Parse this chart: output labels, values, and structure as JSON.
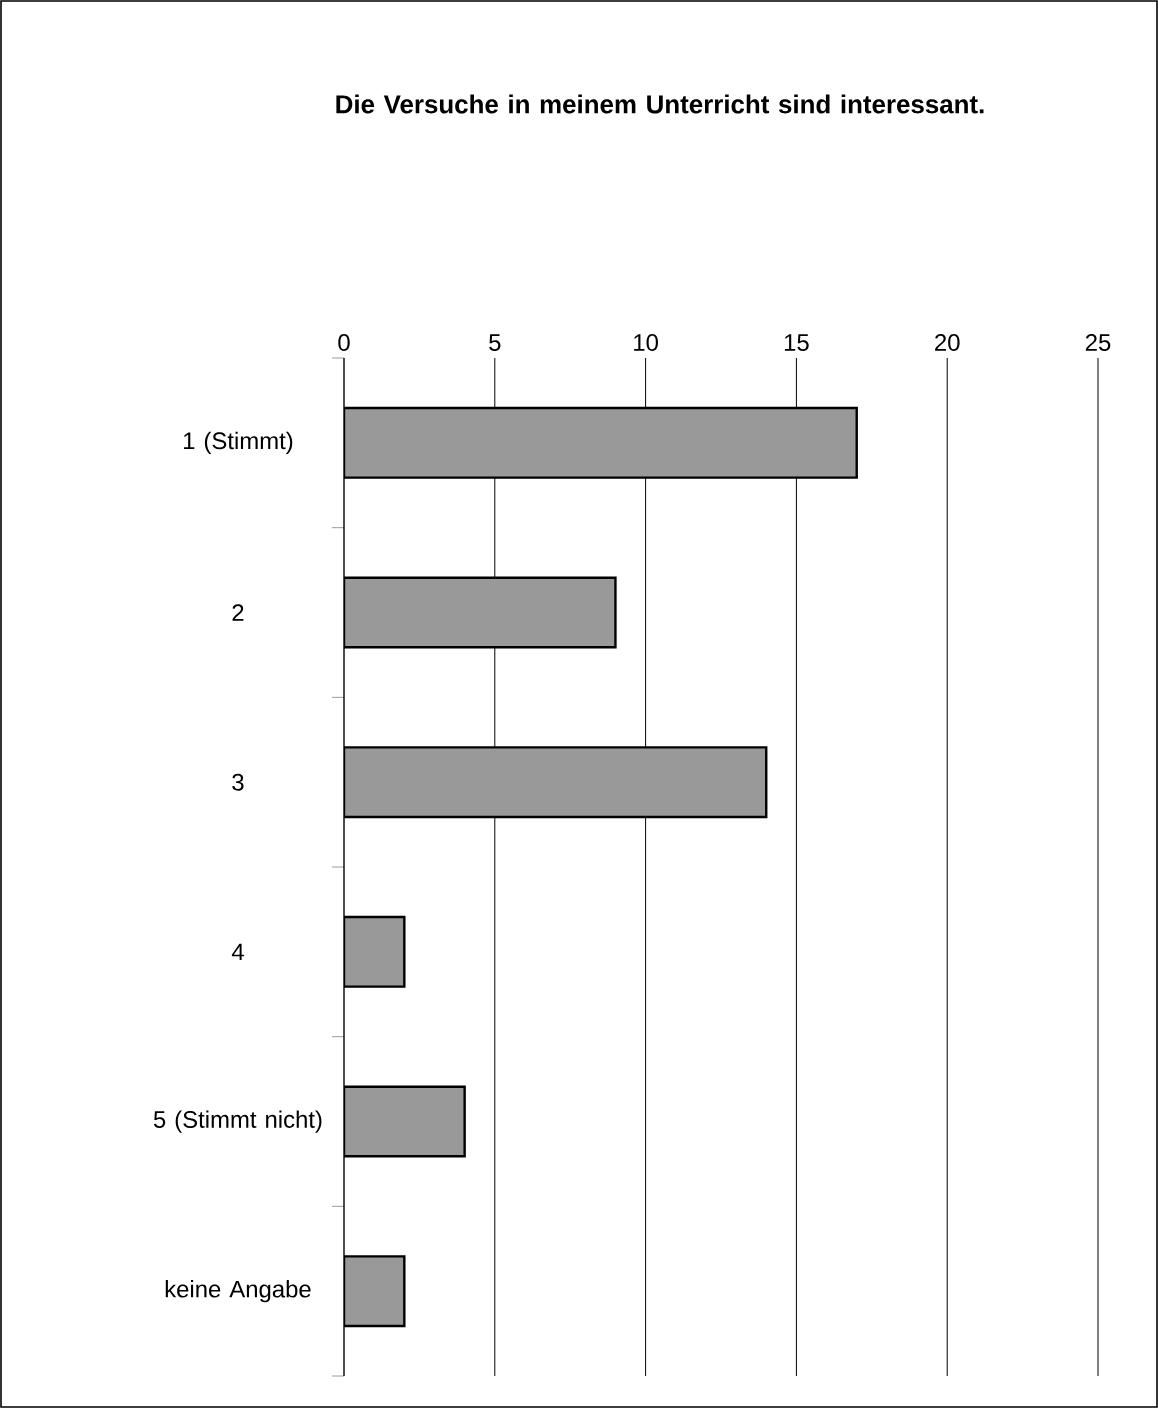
{
  "chart_data": {
    "type": "bar",
    "orientation": "horizontal",
    "title": "Die Versuche in meinem Unterricht sind interessant.",
    "categories": [
      "1 (Stimmt)",
      "2",
      "3",
      "4",
      "5 (Stimmt nicht)",
      "keine Angabe"
    ],
    "values": [
      17,
      9,
      14,
      2,
      4,
      2
    ],
    "color": "#999999",
    "xlim": [
      0,
      25
    ],
    "xticks": [
      0,
      5,
      10,
      15,
      20,
      25
    ],
    "grid": "x"
  }
}
